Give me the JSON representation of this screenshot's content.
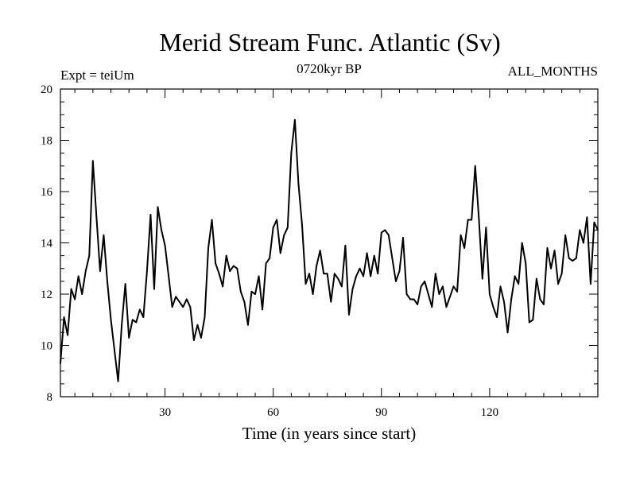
{
  "chart_data": {
    "type": "line",
    "title": "Merid Stream Func. Atlantic (Sv)",
    "left_annotation": "Expt = teiUm",
    "center_annotation": "0720kyr BP",
    "right_annotation": "ALL_MONTHS",
    "xlabel": "Time (in years since start)",
    "ylabel": "",
    "xlim": [
      1,
      150
    ],
    "ylim": [
      8,
      20
    ],
    "xticks": [
      30,
      60,
      90,
      120
    ],
    "yticks": [
      8,
      10,
      12,
      14,
      16,
      18,
      20
    ],
    "grid": false,
    "series": [
      {
        "name": "Merid Stream Func. Atlantic",
        "color": "#000000",
        "x": [
          1,
          2,
          3,
          4,
          5,
          6,
          7,
          8,
          9,
          10,
          11,
          12,
          13,
          14,
          15,
          16,
          17,
          18,
          19,
          20,
          21,
          22,
          23,
          24,
          25,
          26,
          27,
          28,
          29,
          30,
          31,
          32,
          33,
          34,
          35,
          36,
          37,
          38,
          39,
          40,
          41,
          42,
          43,
          44,
          45,
          46,
          47,
          48,
          49,
          50,
          51,
          52,
          53,
          54,
          55,
          56,
          57,
          58,
          59,
          60,
          61,
          62,
          63,
          64,
          65,
          66,
          67,
          68,
          69,
          70,
          71,
          72,
          73,
          74,
          75,
          76,
          77,
          78,
          79,
          80,
          81,
          82,
          83,
          84,
          85,
          86,
          87,
          88,
          89,
          90,
          91,
          92,
          93,
          94,
          95,
          96,
          97,
          98,
          99,
          100,
          101,
          102,
          103,
          104,
          105,
          106,
          107,
          108,
          109,
          110,
          111,
          112,
          113,
          114,
          115,
          116,
          117,
          118,
          119,
          120,
          121,
          122,
          123,
          124,
          125,
          126,
          127,
          128,
          129,
          130,
          131,
          132,
          133,
          134,
          135,
          136,
          137,
          138,
          139,
          140,
          141,
          142,
          143,
          144,
          145,
          146,
          147,
          148,
          149,
          150
        ],
        "y": [
          9.3,
          11.1,
          10.4,
          12.2,
          11.8,
          12.7,
          12.0,
          12.9,
          13.5,
          17.2,
          15.0,
          12.9,
          14.3,
          12.5,
          11.0,
          9.8,
          8.6,
          10.8,
          12.4,
          10.3,
          11.0,
          10.9,
          11.4,
          11.1,
          12.9,
          15.1,
          12.2,
          15.4,
          14.5,
          13.9,
          12.7,
          11.5,
          11.9,
          11.7,
          11.5,
          11.8,
          11.5,
          10.2,
          10.8,
          10.3,
          11.1,
          13.8,
          14.9,
          13.2,
          12.8,
          12.3,
          13.5,
          12.9,
          13.1,
          13.0,
          12.1,
          11.7,
          10.8,
          12.1,
          12.0,
          12.7,
          11.4,
          13.2,
          13.4,
          14.6,
          14.9,
          13.6,
          14.3,
          14.6,
          17.5,
          18.8,
          16.3,
          14.7,
          12.4,
          12.8,
          12.0,
          13.1,
          13.7,
          12.8,
          12.8,
          11.7,
          12.8,
          12.6,
          12.3,
          13.9,
          11.2,
          12.2,
          12.7,
          13.0,
          12.7,
          13.6,
          12.7,
          13.5,
          12.8,
          14.4,
          14.5,
          14.3,
          13.4,
          12.5,
          12.9,
          14.2,
          12.0,
          11.8,
          11.8,
          11.6,
          12.3,
          12.5,
          12.0,
          11.5,
          12.8,
          12.0,
          12.3,
          11.5,
          11.9,
          12.3,
          12.1,
          14.3,
          13.8,
          14.9,
          14.9,
          17.0,
          15.0,
          12.6,
          14.6,
          12.0,
          11.5,
          11.1,
          12.3,
          11.7,
          10.5,
          11.8,
          12.7,
          12.4,
          14.0,
          13.2,
          10.9,
          11.0,
          12.6,
          11.8,
          11.6,
          13.8,
          13.0,
          13.7,
          12.4,
          12.8,
          14.3,
          13.4,
          13.3,
          13.4,
          14.5,
          14.0,
          15.0,
          12.4,
          14.8,
          14.5
        ]
      }
    ]
  }
}
